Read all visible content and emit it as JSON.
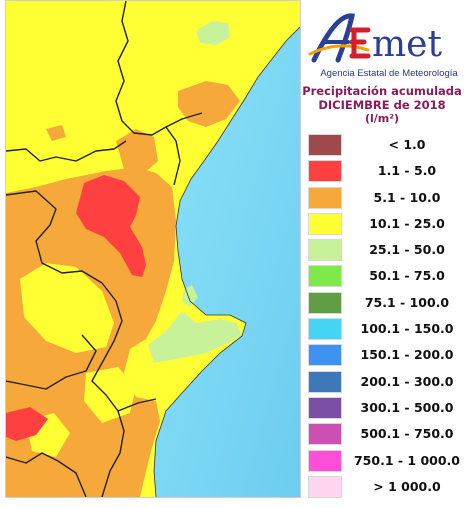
{
  "logo": {
    "brand_prefix": "A",
    "brand_e": "E",
    "brand_rest": "met",
    "subtitle": "Agencia Estatal de Meteorología"
  },
  "legend": {
    "title_line1": "Precipitación acumulada",
    "title_line2": "DICIEMBRE de 2018",
    "unit": "(l/m²)",
    "items": [
      {
        "label": "< 1.0",
        "color": "#9e4a4a"
      },
      {
        "label": "1.1 - 5.0",
        "color": "#ff4040"
      },
      {
        "label": "5.1 - 10.0",
        "color": "#f6a93a"
      },
      {
        "label": "10.1 - 25.0",
        "color": "#ffff33"
      },
      {
        "label": "25.1 - 50.0",
        "color": "#c7f29a"
      },
      {
        "label": "50.1 - 75.0",
        "color": "#7fe84a"
      },
      {
        "label": "75.1 - 100.0",
        "color": "#5f9e45"
      },
      {
        "label": "100.1 - 150.0",
        "color": "#45d6f6"
      },
      {
        "label": "150.1 - 200.0",
        "color": "#3f93f0"
      },
      {
        "label": "200.1 - 300.0",
        "color": "#3f78b8"
      },
      {
        "label": "300.1 - 500.0",
        "color": "#7c4fa6"
      },
      {
        "label": "500.1 - 750.0",
        "color": "#cc4fb4"
      },
      {
        "label": "750.1 - 1 000.0",
        "color": "#ff4fd9"
      },
      {
        "label": "> 1 000.0",
        "color": "#ffd6ee"
      }
    ]
  },
  "map": {
    "sea_color": "#7fd8f5",
    "land_base_color": "#ffff33",
    "border_color": "#222222"
  }
}
